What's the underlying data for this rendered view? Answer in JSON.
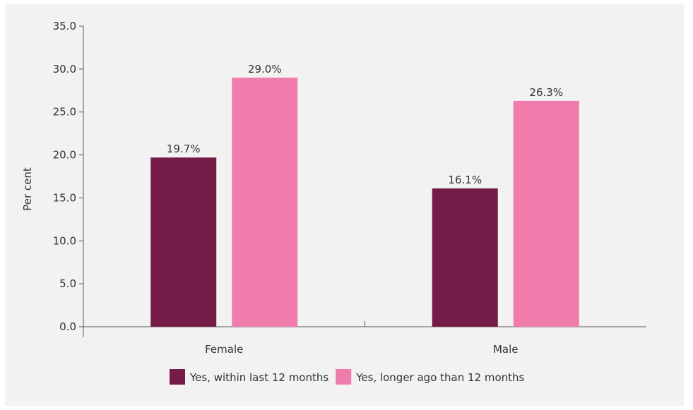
{
  "chart_data": {
    "type": "bar",
    "title": "",
    "xlabel": "",
    "ylabel": "Per cent",
    "ylim": [
      0,
      35
    ],
    "yticks": [
      "0.0",
      "5.0",
      "10.0",
      "15.0",
      "20.0",
      "25.0",
      "30.0",
      "35.0"
    ],
    "categories": [
      "Female",
      "Male"
    ],
    "series": [
      {
        "name": "Yes, within last 12 months",
        "color": "#741b47",
        "values": [
          19.7,
          16.1
        ],
        "labels": [
          "19.7%",
          "16.1%"
        ]
      },
      {
        "name": "Yes, longer ago than 12 months",
        "color": "#f07cab",
        "values": [
          29.0,
          26.3
        ],
        "labels": [
          "29.0%",
          "26.3%"
        ]
      }
    ],
    "grid": false,
    "legend_position": "bottom"
  }
}
